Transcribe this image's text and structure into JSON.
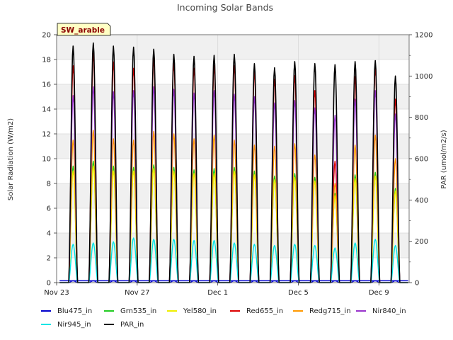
{
  "chart_data": {
    "type": "line",
    "title": "Incoming Solar Bands",
    "site_label": "SW_arable",
    "ylabel_left": "Solar Radiation (W/m2)",
    "ylabel_right": "PAR (umol/m2/s)",
    "xlabel": "",
    "ylim_left": [
      0,
      20
    ],
    "ylim_right": [
      0,
      1200
    ],
    "yticks_left": [
      "0",
      "2",
      "4",
      "6",
      "8",
      "10",
      "12",
      "14",
      "16",
      "18",
      "20"
    ],
    "yticks_right": [
      "0",
      "200",
      "400",
      "600",
      "800",
      "1000",
      "1200"
    ],
    "xrange_days": [
      0,
      17.5
    ],
    "xticks": [
      {
        "day": 0,
        "label": "Nov 23"
      },
      {
        "day": 4,
        "label": "Nov 27"
      },
      {
        "day": 8,
        "label": "Dec 1"
      },
      {
        "day": 12,
        "label": "Dec 5"
      },
      {
        "day": 16,
        "label": "Dec 9"
      }
    ],
    "grid": true,
    "legend_placement": "bottom",
    "day_centers": [
      0.82,
      1.82,
      2.82,
      3.82,
      4.82,
      5.82,
      6.82,
      7.82,
      8.82,
      9.82,
      10.82,
      11.82,
      12.82,
      13.82,
      14.82,
      15.82,
      16.82
    ],
    "series": [
      {
        "name": "Blu475_in",
        "color": "#0000cc",
        "axis": "left",
        "daily_peaks": [
          0.15,
          0.15,
          0.15,
          0.15,
          0.15,
          0.15,
          0.15,
          0.15,
          0.15,
          0.15,
          0.15,
          0.15,
          0.15,
          0.15,
          0.15,
          0.15,
          0.15
        ]
      },
      {
        "name": "Grn535_in",
        "color": "#22cc22",
        "axis": "left",
        "daily_peaks": [
          9.4,
          9.8,
          9.4,
          9.3,
          9.5,
          9.3,
          9.1,
          9.2,
          9.3,
          9.0,
          8.6,
          8.8,
          8.5,
          7.2,
          8.7,
          8.9,
          7.6
        ]
      },
      {
        "name": "Yel580_in",
        "color": "#eeee00",
        "axis": "left",
        "daily_peaks": [
          9.0,
          9.4,
          9.0,
          9.0,
          9.2,
          9.0,
          8.8,
          8.8,
          9.0,
          8.7,
          8.3,
          8.5,
          8.2,
          7.0,
          8.4,
          8.6,
          7.4
        ]
      },
      {
        "name": "Red655_in",
        "color": "#dd0000",
        "axis": "left",
        "daily_peaks": [
          17.5,
          18.5,
          17.8,
          17.3,
          18.1,
          17.7,
          17.3,
          17.5,
          17.5,
          17.0,
          16.4,
          16.7,
          15.5,
          9.8,
          16.6,
          17.3,
          14.8
        ]
      },
      {
        "name": "Redg715_in",
        "color": "#ff9900",
        "axis": "left",
        "daily_peaks": [
          11.5,
          12.3,
          11.6,
          11.5,
          12.2,
          12.0,
          11.6,
          11.9,
          11.5,
          11.1,
          11.0,
          11.2,
          10.3,
          8.0,
          11.1,
          11.9,
          10.0
        ]
      },
      {
        "name": "Nir840_in",
        "color": "#9933cc",
        "axis": "left",
        "daily_peaks": [
          15.1,
          15.8,
          15.4,
          15.5,
          15.8,
          15.6,
          15.3,
          15.5,
          15.2,
          15.0,
          14.5,
          14.7,
          14.1,
          13.5,
          14.8,
          15.5,
          13.6
        ]
      },
      {
        "name": "Nir945_in",
        "color": "#00e5e5",
        "axis": "left",
        "daily_peaks": [
          3.1,
          3.2,
          3.3,
          3.6,
          3.5,
          3.5,
          3.4,
          3.4,
          3.2,
          3.1,
          3.0,
          3.1,
          3.0,
          2.8,
          3.2,
          3.5,
          3.0
        ]
      },
      {
        "name": "PAR_in",
        "color": "#000000",
        "axis": "right",
        "daily_peaks": [
          1145,
          1160,
          1145,
          1140,
          1130,
          1105,
          1095,
          1100,
          1105,
          1060,
          1040,
          1070,
          1060,
          1055,
          1070,
          1075,
          1000
        ]
      }
    ]
  }
}
